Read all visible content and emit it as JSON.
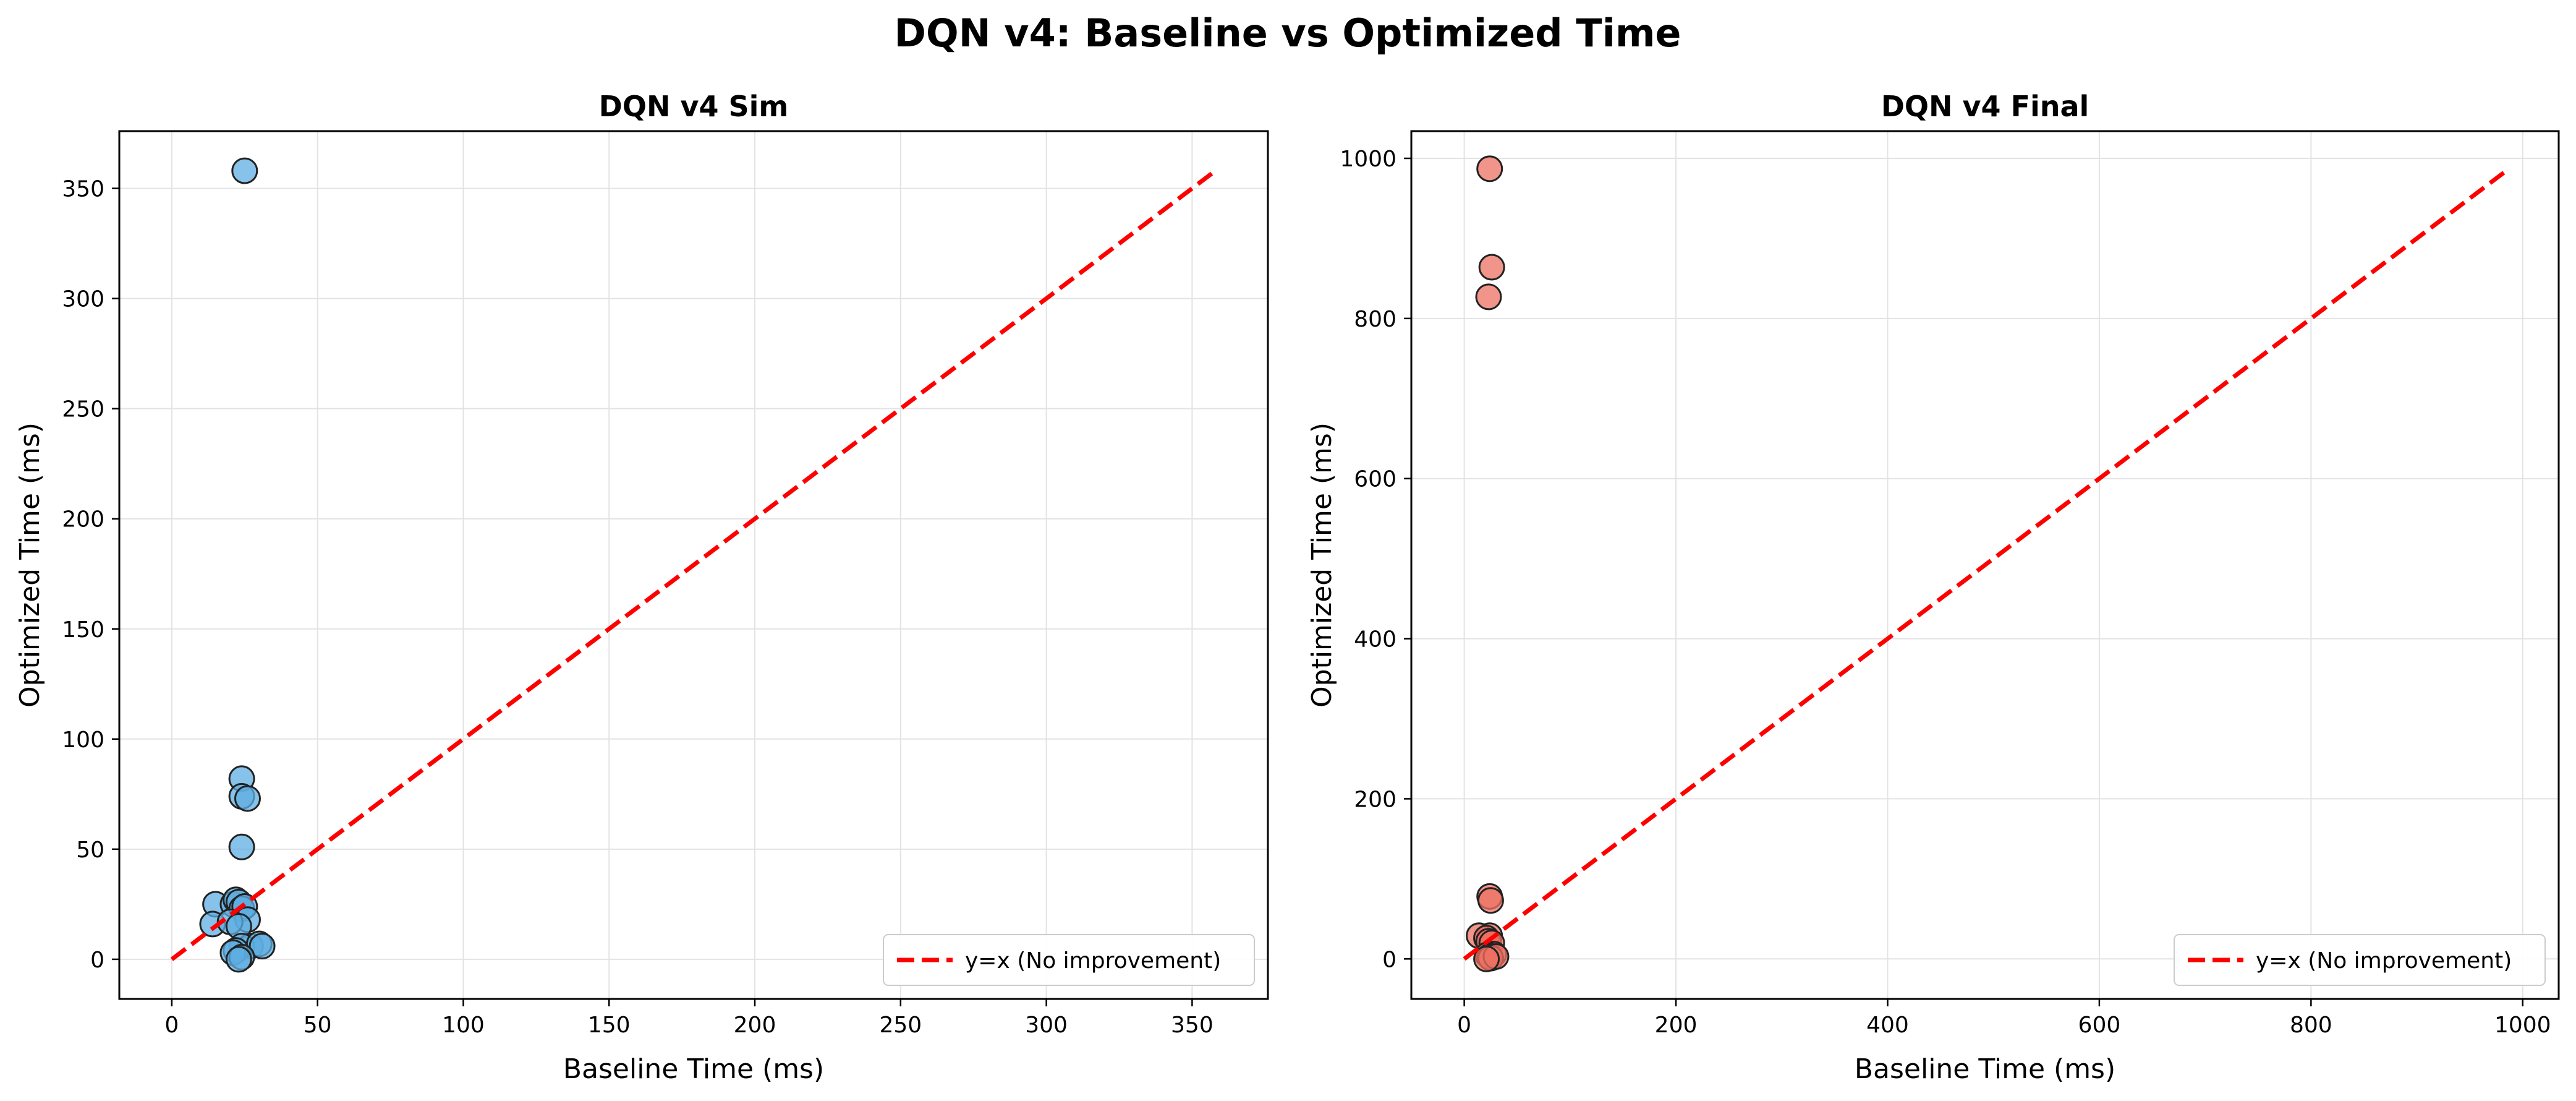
{
  "suptitle": "DQN v4: Baseline vs Optimized Time",
  "chart_data": [
    {
      "type": "scatter",
      "title": "DQN v4 Sim",
      "xlabel": "Baseline Time (ms)",
      "ylabel": "Optimized Time (ms)",
      "xlim": [
        -18,
        376
      ],
      "ylim": [
        -18,
        376
      ],
      "xticks": [
        0,
        50,
        100,
        150,
        200,
        250,
        300,
        350
      ],
      "yticks": [
        0,
        50,
        100,
        150,
        200,
        250,
        300,
        350
      ],
      "grid": true,
      "legend_position": "lower-right",
      "point_color": "#5DADE2",
      "series": [
        {
          "x": [
            25,
            24,
            24,
            26,
            24,
            15,
            21,
            22,
            23,
            24,
            25,
            26,
            14,
            20,
            23,
            27,
            24,
            22,
            21,
            30,
            31,
            24,
            23
          ],
          "y": [
            358,
            82,
            74,
            73,
            51,
            25,
            25,
            27,
            26,
            23,
            24,
            18,
            16,
            17,
            15,
            6,
            6,
            4,
            3,
            7,
            6,
            1,
            0
          ]
        }
      ],
      "reference_line": {
        "label": "y=x (No improvement)",
        "from": 0,
        "to": 358,
        "color": "#FF0000"
      }
    },
    {
      "type": "scatter",
      "title": "DQN v4 Final",
      "xlabel": "Baseline Time (ms)",
      "ylabel": "Optimized Time (ms)",
      "xlim": [
        -50,
        1034
      ],
      "ylim": [
        -50,
        1034
      ],
      "xticks": [
        0,
        200,
        400,
        600,
        800,
        1000
      ],
      "yticks": [
        0,
        200,
        400,
        600,
        800,
        1000
      ],
      "grid": true,
      "legend_position": "lower-right",
      "point_color": "#EC7063",
      "series": [
        {
          "x": [
            24,
            26,
            23,
            24,
            25,
            24,
            14,
            21,
            23,
            26,
            28,
            22,
            24,
            25,
            30,
            21
          ],
          "y": [
            987,
            864,
            827,
            78,
            73,
            29,
            29,
            26,
            22,
            20,
            6,
            5,
            3,
            1,
            3,
            0
          ]
        }
      ],
      "reference_line": {
        "label": "y=x (No improvement)",
        "from": 0,
        "to": 987,
        "color": "#FF0000"
      }
    }
  ]
}
